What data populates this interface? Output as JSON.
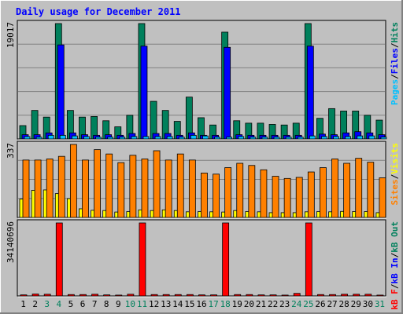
{
  "title": "Daily usage for December 2011",
  "colors": {
    "background": "#c0c0c0",
    "title": "#0000ff",
    "hits": "#00805c",
    "files": "#0000ff",
    "pages": "#00c0ff",
    "visits": "#ffff00",
    "sites": "#ff8000",
    "kb_in": "#0000ff",
    "kb_out": "#00805c",
    "kb_f": "#ff0000",
    "grid": "#808080",
    "weekend_day": "#00805c",
    "weekday": "#000000"
  },
  "chart_data": [
    {
      "type": "bar",
      "panel": "hits-files-pages",
      "categories": [
        "1",
        "2",
        "3",
        "4",
        "5",
        "6",
        "7",
        "8",
        "9",
        "10",
        "11",
        "12",
        "13",
        "14",
        "15",
        "16",
        "17",
        "18",
        "19",
        "20",
        "21",
        "22",
        "23",
        "24",
        "25",
        "26",
        "27",
        "28",
        "29",
        "30",
        "31"
      ],
      "weekend_days": [
        "3",
        "4",
        "10",
        "11",
        "17",
        "18",
        "24",
        "25",
        "31"
      ],
      "ymax_label": "19017",
      "ylim": [
        0,
        19017
      ],
      "series": [
        {
          "name": "Hits",
          "values": [
            2200,
            4700,
            3600,
            19017,
            4700,
            3600,
            3700,
            3000,
            2000,
            3900,
            19017,
            6200,
            4700,
            2900,
            6900,
            3500,
            2300,
            17600,
            3000,
            2600,
            2600,
            2400,
            2300,
            2600,
            19017,
            3400,
            5000,
            4600,
            4600,
            3900,
            3100
          ]
        },
        {
          "name": "Files",
          "values": [
            700,
            700,
            1000,
            15500,
            1000,
            700,
            600,
            700,
            600,
            900,
            15300,
            900,
            900,
            600,
            1000,
            600,
            600,
            15100,
            700,
            600,
            600,
            600,
            600,
            600,
            15300,
            800,
            700,
            1000,
            1200,
            1000,
            700
          ]
        },
        {
          "name": "Pages",
          "values": [
            400,
            300,
            600,
            600,
            500,
            400,
            300,
            300,
            300,
            400,
            400,
            400,
            400,
            300,
            600,
            500,
            300,
            300,
            400,
            300,
            300,
            300,
            300,
            300,
            500,
            400,
            400,
            400,
            500,
            500,
            300
          ]
        }
      ]
    },
    {
      "type": "bar",
      "panel": "visits-sites",
      "categories": [
        "1",
        "2",
        "3",
        "4",
        "5",
        "6",
        "7",
        "8",
        "9",
        "10",
        "11",
        "12",
        "13",
        "14",
        "15",
        "16",
        "17",
        "18",
        "19",
        "20",
        "21",
        "22",
        "23",
        "24",
        "25",
        "26",
        "27",
        "28",
        "29",
        "30",
        "31"
      ],
      "ymax_label": "337",
      "ylim": [
        0,
        337
      ],
      "series": [
        {
          "name": "Sites",
          "values": [
            265,
            265,
            270,
            282,
            337,
            265,
            313,
            293,
            253,
            287,
            270,
            308,
            265,
            293,
            265,
            205,
            200,
            230,
            250,
            240,
            220,
            190,
            180,
            185,
            210,
            230,
            270,
            250,
            273,
            255,
            183
          ]
        },
        {
          "name": "Visits",
          "values": [
            85,
            125,
            127,
            110,
            87,
            40,
            33,
            32,
            25,
            27,
            35,
            32,
            35,
            32,
            26,
            27,
            26,
            25,
            32,
            27,
            26,
            22,
            22,
            22,
            26,
            27,
            26,
            28,
            27,
            27,
            22
          ]
        }
      ]
    },
    {
      "type": "bar",
      "panel": "kbytes",
      "categories": [
        "1",
        "2",
        "3",
        "4",
        "5",
        "6",
        "7",
        "8",
        "9",
        "10",
        "11",
        "12",
        "13",
        "14",
        "15",
        "16",
        "17",
        "18",
        "19",
        "20",
        "21",
        "22",
        "23",
        "24",
        "25",
        "26",
        "27",
        "28",
        "29",
        "30",
        "31"
      ],
      "ymax_label": "34140696",
      "ylim": [
        0,
        34140696
      ],
      "series": [
        {
          "name": "KBytes F",
          "values": [
            500000,
            900000,
            800000,
            34140696,
            650000,
            650000,
            800000,
            500000,
            400000,
            800000,
            34140696,
            650000,
            650000,
            650000,
            650000,
            500000,
            500000,
            34140696,
            650000,
            650000,
            500000,
            500000,
            400000,
            1200000,
            34140696,
            650000,
            650000,
            800000,
            800000,
            800000,
            400000
          ]
        }
      ]
    }
  ],
  "legend_right": {
    "panel1": [
      {
        "text": "Pages",
        "color": "#00c0ff"
      },
      {
        "text": "/",
        "color": "#000000"
      },
      {
        "text": "Files",
        "color": "#0000ff"
      },
      {
        "text": "/",
        "color": "#000000"
      },
      {
        "text": "Hits",
        "color": "#00805c"
      }
    ],
    "panel2": [
      {
        "text": "Sites",
        "color": "#ff8000"
      },
      {
        "text": "/",
        "color": "#000000"
      },
      {
        "text": "Visits",
        "color": "#ffff00"
      }
    ],
    "panel3": [
      {
        "text": "kB F",
        "color": "#ff0000"
      },
      {
        "text": "/",
        "color": "#000000"
      },
      {
        "text": "kB In",
        "color": "#0000ff"
      },
      {
        "text": "/",
        "color": "#000000"
      },
      {
        "text": "kB Out",
        "color": "#00805c"
      }
    ]
  }
}
